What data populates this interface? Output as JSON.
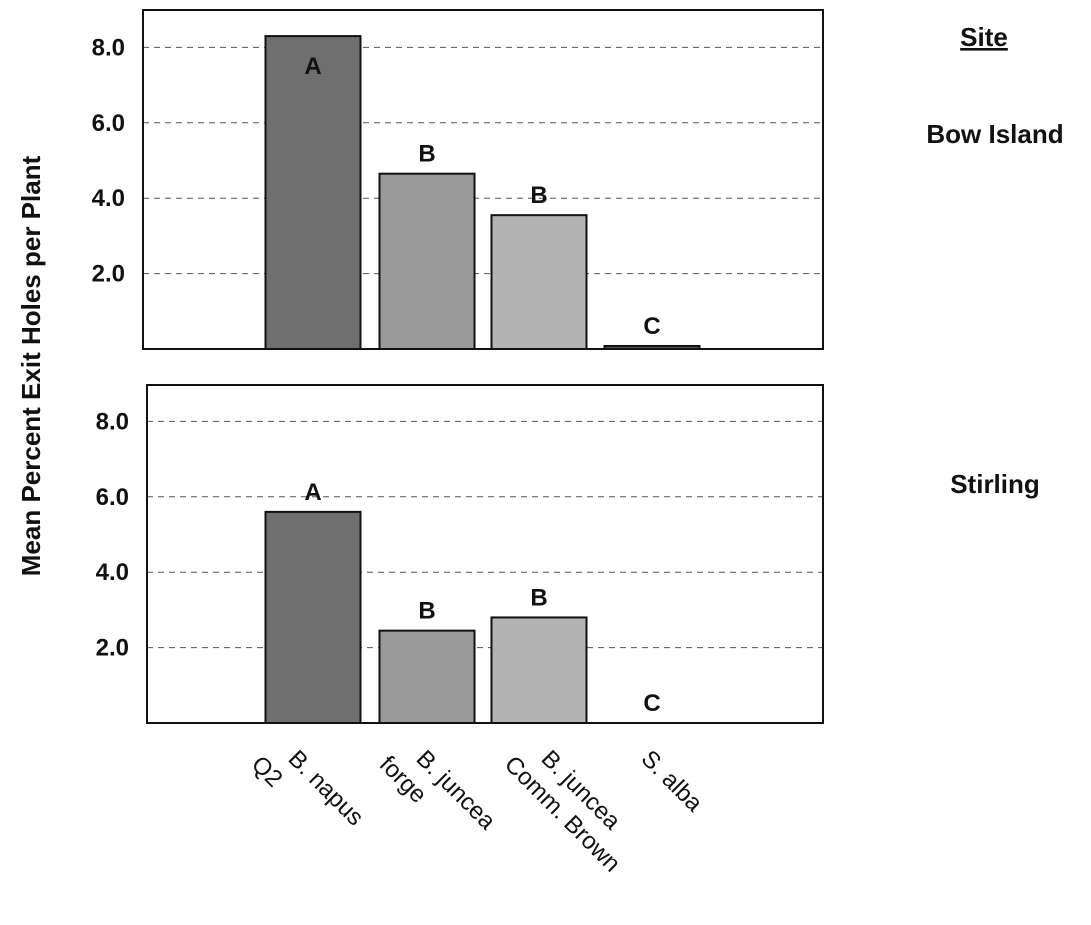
{
  "y_axis_label": "Mean Percent Exit Holes per Plant",
  "site_header": "Site",
  "chart_data": {
    "type": "bar",
    "ylabel": "Mean Percent Exit Holes per Plant",
    "ylim": [
      0,
      9
    ],
    "yticks": [
      "2.0",
      "4.0",
      "6.0",
      "8.0"
    ],
    "grid": "horizontal dashed",
    "categories": [
      [
        "B. napus",
        "Q2"
      ],
      [
        "B. juncea",
        "forge"
      ],
      [
        "B. juncea",
        "Comm. Brown"
      ],
      [
        "S. alba"
      ]
    ],
    "panels": [
      {
        "site": "Bow Island",
        "values": [
          8.3,
          4.65,
          3.55,
          0.08
        ],
        "letters": [
          "A",
          "B",
          "B",
          "C"
        ],
        "colors": [
          "#6f6f6f",
          "#9a9a9a",
          "#b3b3b3",
          "#555555"
        ]
      },
      {
        "site": "Stirling",
        "values": [
          5.6,
          2.45,
          2.8,
          0
        ],
        "letters": [
          "A",
          "B",
          "B",
          "C"
        ],
        "colors": [
          "#6f6f6f",
          "#9a9a9a",
          "#b3b3b3",
          "#555555"
        ]
      }
    ]
  }
}
